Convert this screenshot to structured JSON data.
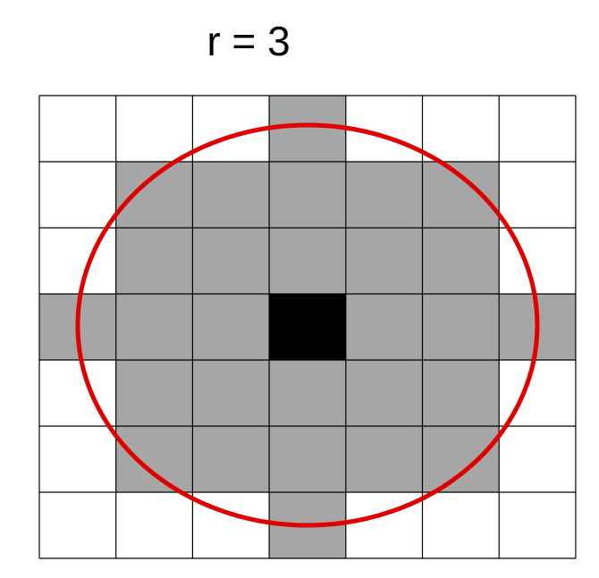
{
  "title": "r = 3",
  "grid": {
    "rows": 7,
    "cols": 7,
    "cells": [
      [
        0,
        0,
        0,
        1,
        0,
        0,
        0
      ],
      [
        0,
        1,
        1,
        1,
        1,
        1,
        0
      ],
      [
        0,
        1,
        1,
        1,
        1,
        1,
        0
      ],
      [
        1,
        1,
        1,
        2,
        1,
        1,
        1
      ],
      [
        0,
        1,
        1,
        1,
        1,
        1,
        0
      ],
      [
        0,
        1,
        1,
        1,
        1,
        1,
        0
      ],
      [
        0,
        0,
        0,
        1,
        0,
        0,
        0
      ]
    ],
    "legend_values": {
      "0": "empty",
      "1": "neighborhood",
      "2": "center"
    }
  },
  "colors": {
    "empty": "#ffffff",
    "neighborhood": "#a6a6a6",
    "center": "#000000",
    "gridline": "#000000",
    "circle": "#e00000"
  }
}
